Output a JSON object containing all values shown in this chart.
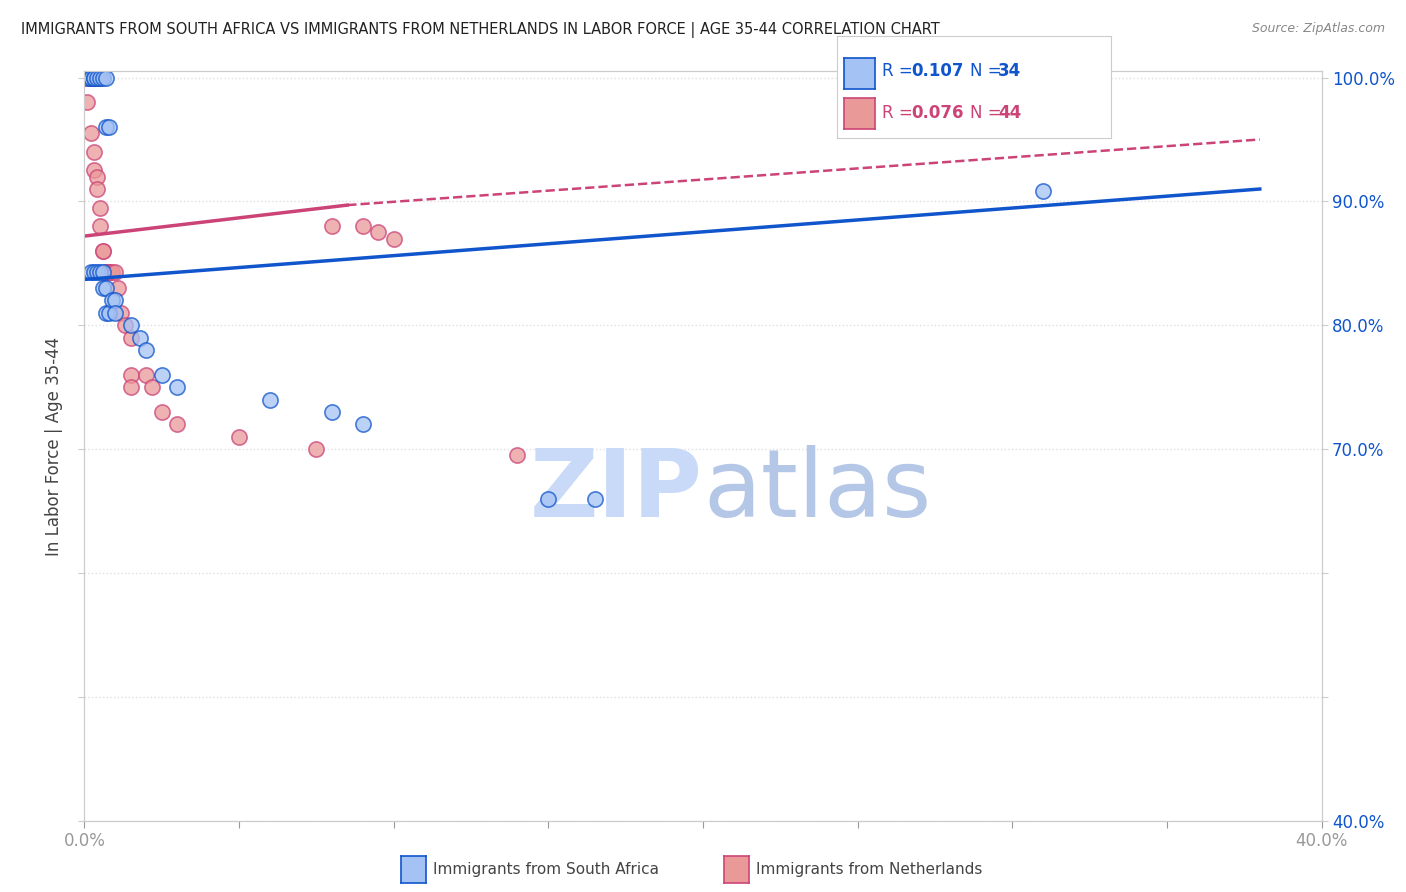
{
  "title": "IMMIGRANTS FROM SOUTH AFRICA VS IMMIGRANTS FROM NETHERLANDS IN LABOR FORCE | AGE 35-44 CORRELATION CHART",
  "source": "Source: ZipAtlas.com",
  "ylabel": "In Labor Force | Age 35-44",
  "xlim": [
    0.0,
    0.4
  ],
  "ylim": [
    0.4,
    1.005
  ],
  "xticks": [
    0.0,
    0.05,
    0.1,
    0.15,
    0.2,
    0.25,
    0.3,
    0.35,
    0.4
  ],
  "yticks": [
    0.4,
    0.5,
    0.6,
    0.7,
    0.8,
    0.9,
    1.0
  ],
  "yticklabels_right": [
    "40.0%",
    "",
    "",
    "70.0%",
    "80.0%",
    "90.0%",
    "100.0%"
  ],
  "legend_blue_r": "R = 0.107",
  "legend_blue_n": "N = 34",
  "legend_pink_r": "R = 0.076",
  "legend_pink_n": "N = 44",
  "blue_color": "#a4c2f4",
  "pink_color": "#ea9999",
  "blue_line_color": "#1155cc",
  "pink_line_color": "#cc4477",
  "blue_scatter": [
    [
      0.001,
      1.0
    ],
    [
      0.002,
      1.0
    ],
    [
      0.002,
      1.0
    ],
    [
      0.003,
      1.0
    ],
    [
      0.003,
      1.0
    ],
    [
      0.004,
      1.0
    ],
    [
      0.005,
      1.0
    ],
    [
      0.006,
      1.0
    ],
    [
      0.007,
      1.0
    ],
    [
      0.007,
      0.96
    ],
    [
      0.008,
      0.96
    ],
    [
      0.002,
      0.843
    ],
    [
      0.003,
      0.843
    ],
    [
      0.004,
      0.843
    ],
    [
      0.005,
      0.843
    ],
    [
      0.006,
      0.843
    ],
    [
      0.006,
      0.83
    ],
    [
      0.007,
      0.83
    ],
    [
      0.007,
      0.81
    ],
    [
      0.008,
      0.81
    ],
    [
      0.009,
      0.82
    ],
    [
      0.01,
      0.82
    ],
    [
      0.01,
      0.81
    ],
    [
      0.015,
      0.8
    ],
    [
      0.018,
      0.79
    ],
    [
      0.02,
      0.78
    ],
    [
      0.025,
      0.76
    ],
    [
      0.03,
      0.75
    ],
    [
      0.06,
      0.74
    ],
    [
      0.08,
      0.73
    ],
    [
      0.09,
      0.72
    ],
    [
      0.15,
      0.66
    ],
    [
      0.165,
      0.66
    ],
    [
      0.31,
      0.908
    ]
  ],
  "pink_scatter": [
    [
      0.001,
      1.0
    ],
    [
      0.002,
      1.0
    ],
    [
      0.002,
      1.0
    ],
    [
      0.002,
      1.0
    ],
    [
      0.002,
      1.0
    ],
    [
      0.003,
      1.0
    ],
    [
      0.003,
      1.0
    ],
    [
      0.004,
      1.0
    ],
    [
      0.004,
      1.0
    ],
    [
      0.004,
      1.0
    ],
    [
      0.005,
      1.0
    ],
    [
      0.001,
      0.98
    ],
    [
      0.002,
      0.955
    ],
    [
      0.003,
      0.94
    ],
    [
      0.003,
      0.925
    ],
    [
      0.004,
      0.92
    ],
    [
      0.004,
      0.91
    ],
    [
      0.005,
      0.895
    ],
    [
      0.005,
      0.88
    ],
    [
      0.006,
      0.86
    ],
    [
      0.006,
      0.86
    ],
    [
      0.007,
      0.843
    ],
    [
      0.007,
      0.843
    ],
    [
      0.008,
      0.843
    ],
    [
      0.008,
      0.843
    ],
    [
      0.009,
      0.843
    ],
    [
      0.01,
      0.843
    ],
    [
      0.011,
      0.83
    ],
    [
      0.012,
      0.81
    ],
    [
      0.013,
      0.8
    ],
    [
      0.015,
      0.79
    ],
    [
      0.015,
      0.76
    ],
    [
      0.015,
      0.75
    ],
    [
      0.02,
      0.76
    ],
    [
      0.022,
      0.75
    ],
    [
      0.025,
      0.73
    ],
    [
      0.03,
      0.72
    ],
    [
      0.05,
      0.71
    ],
    [
      0.075,
      0.7
    ],
    [
      0.08,
      0.88
    ],
    [
      0.09,
      0.88
    ],
    [
      0.095,
      0.875
    ],
    [
      0.1,
      0.87
    ],
    [
      0.14,
      0.695
    ]
  ],
  "blue_trendline": [
    [
      0.0,
      0.837
    ],
    [
      0.38,
      0.91
    ]
  ],
  "pink_trendline_solid": [
    [
      0.0,
      0.872
    ],
    [
      0.085,
      0.897
    ]
  ],
  "pink_trendline_dashed": [
    [
      0.085,
      0.897
    ],
    [
      0.38,
      0.95
    ]
  ],
  "watermark_zip": "ZIP",
  "watermark_atlas": "atlas",
  "watermark_color": "#c9daf8",
  "watermark_atlas_color": "#b4c7e7",
  "background_color": "#ffffff",
  "grid_color": "#e0e0e0"
}
